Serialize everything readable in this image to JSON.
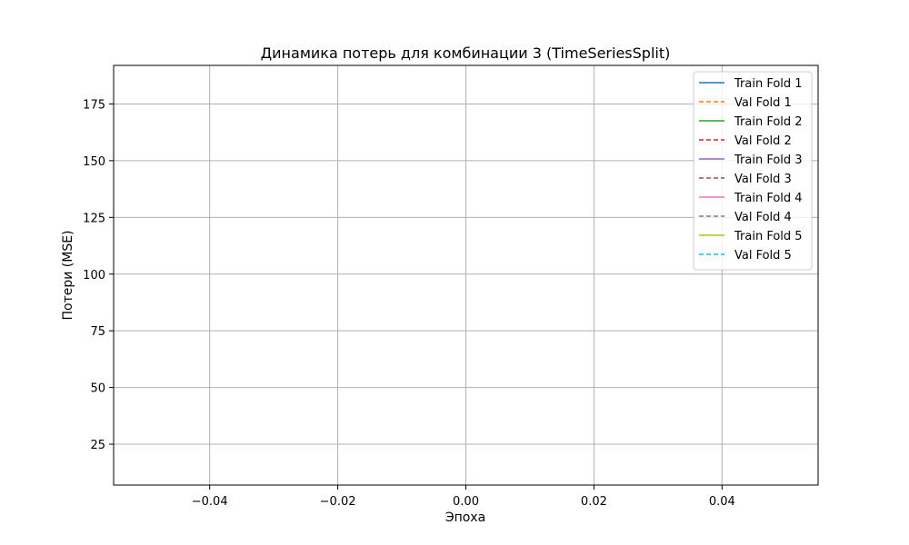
{
  "chart_data": {
    "type": "line",
    "title": "Динамика потерь для комбинации 3 (TimeSeriesSplit)",
    "xlabel": "Эпоха",
    "ylabel": "Потери (MSE)",
    "xlim": [
      -0.055,
      0.055
    ],
    "ylim": [
      7,
      192
    ],
    "x_ticks": [
      -0.04,
      -0.02,
      0.0,
      0.02,
      0.04
    ],
    "x_tick_labels": [
      "−0.04",
      "−0.02",
      "0.00",
      "0.02",
      "0.04"
    ],
    "y_ticks": [
      25,
      50,
      75,
      100,
      125,
      150,
      175
    ],
    "y_tick_labels": [
      "25",
      "50",
      "75",
      "100",
      "125",
      "150",
      "175"
    ],
    "grid": true,
    "legend_position": "top-right",
    "series": [
      {
        "name": "Train Fold 1",
        "color": "#1f77b4",
        "style": "solid",
        "x": [
          0
        ],
        "y": [
          null
        ]
      },
      {
        "name": "Val Fold 1",
        "color": "#ff7f0e",
        "style": "dashed",
        "x": [
          0
        ],
        "y": [
          null
        ]
      },
      {
        "name": "Train Fold 2",
        "color": "#2ca02c",
        "style": "solid",
        "x": [
          0
        ],
        "y": [
          null
        ]
      },
      {
        "name": "Val Fold 2",
        "color": "#d62728",
        "style": "dashed",
        "x": [
          0
        ],
        "y": [
          null
        ]
      },
      {
        "name": "Train Fold 3",
        "color": "#9467bd",
        "style": "solid",
        "x": [
          0
        ],
        "y": [
          null
        ]
      },
      {
        "name": "Val Fold 3",
        "color": "#8c564b",
        "style": "dashed",
        "x": [
          0
        ],
        "y": [
          null
        ]
      },
      {
        "name": "Train Fold 4",
        "color": "#e377c2",
        "style": "solid",
        "x": [
          0
        ],
        "y": [
          null
        ]
      },
      {
        "name": "Val Fold 4",
        "color": "#7f7f7f",
        "style": "dashed",
        "x": [
          0
        ],
        "y": [
          null
        ]
      },
      {
        "name": "Train Fold 5",
        "color": "#bcbd22",
        "style": "solid",
        "x": [
          0
        ],
        "y": [
          null
        ]
      },
      {
        "name": "Val Fold 5",
        "color": "#17becf",
        "style": "dashed",
        "x": [
          0
        ],
        "y": [
          null
        ]
      }
    ]
  }
}
